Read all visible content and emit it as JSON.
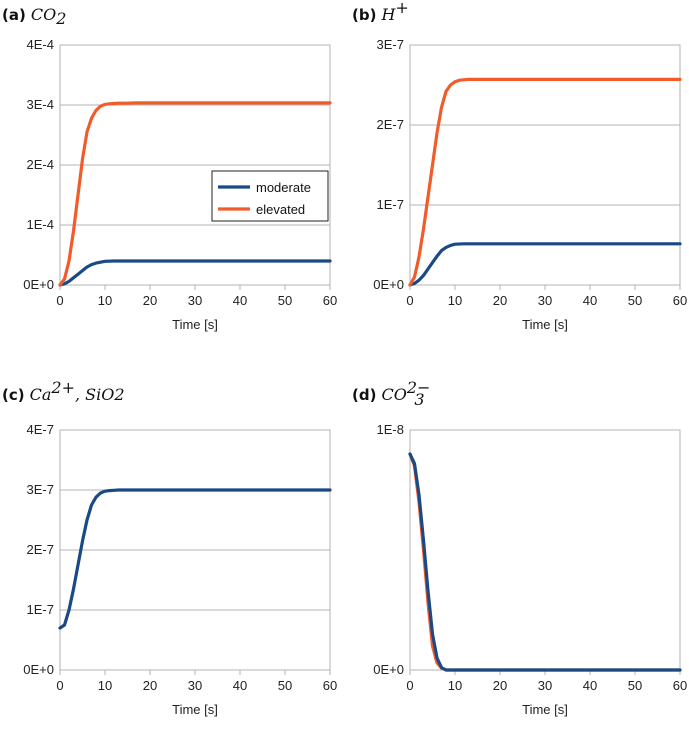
{
  "colors": {
    "moderate": "#1a4a86",
    "elevated": "#f25c2a"
  },
  "chart_data": [
    {
      "id": "a",
      "type": "line",
      "letter": "(a)",
      "symbol": {
        "base": "CO",
        "sub": "2",
        "sup": ""
      },
      "xlabel": "Time [s]",
      "xlim": [
        0,
        60
      ],
      "xticks": [
        0,
        10,
        20,
        30,
        40,
        50,
        60
      ],
      "ylim": [
        0,
        0.0004
      ],
      "yticks": [
        0,
        0.0001,
        0.0002,
        0.0003,
        0.0004
      ],
      "ytick_labels": [
        "0E+0",
        "1E-4",
        "2E-4",
        "3E-4",
        "4E-4"
      ],
      "legend": {
        "placement": "center-right",
        "entries": [
          "moderate",
          "elevated"
        ]
      },
      "series": [
        {
          "name": "moderate",
          "color_key": "moderate",
          "x": [
            0,
            1,
            2,
            3,
            4,
            5,
            6,
            7,
            8,
            9,
            10,
            12,
            14,
            16,
            20,
            30,
            40,
            50,
            60
          ],
          "y": [
            0,
            2e-06,
            6e-06,
            1.2e-05,
            1.8e-05,
            2.4e-05,
            3e-05,
            3.4e-05,
            3.65e-05,
            3.8e-05,
            3.95e-05,
            4e-05,
            4e-05,
            4e-05,
            4e-05,
            4e-05,
            4e-05,
            4e-05,
            4e-05
          ]
        },
        {
          "name": "elevated",
          "color_key": "elevated",
          "x": [
            0,
            1,
            2,
            3,
            4,
            5,
            6,
            7,
            8,
            9,
            10,
            11,
            12,
            13,
            14,
            15,
            17,
            20,
            30,
            40,
            50,
            60
          ],
          "y": [
            0,
            1e-05,
            4e-05,
            9e-05,
            0.00015,
            0.00021,
            0.000255,
            0.000278,
            0.000291,
            0.000298,
            0.000301,
            0.000302,
            0.0003025,
            0.000303,
            0.000303,
            0.000303,
            0.0003035,
            0.0003035,
            0.0003035,
            0.0003035,
            0.0003035,
            0.0003035
          ]
        }
      ]
    },
    {
      "id": "b",
      "type": "line",
      "letter": "(b)",
      "symbol": {
        "base": "H",
        "sub": "",
        "sup": "+"
      },
      "xlabel": "Time [s]",
      "xlim": [
        0,
        60
      ],
      "xticks": [
        0,
        10,
        20,
        30,
        40,
        50,
        60
      ],
      "ylim": [
        0,
        3e-07
      ],
      "yticks": [
        0,
        1e-07,
        2e-07,
        3e-07
      ],
      "ytick_labels": [
        "0E+0",
        "1E-7",
        "2E-7",
        "3E-7"
      ],
      "series": [
        {
          "name": "moderate",
          "color_key": "moderate",
          "x": [
            0,
            1,
            2,
            3,
            4,
            5,
            6,
            7,
            8,
            9,
            10,
            12,
            14,
            16,
            20,
            30,
            40,
            50,
            60
          ],
          "y": [
            0,
            2e-09,
            6e-09,
            1.2e-08,
            2e-08,
            2.8e-08,
            3.6e-08,
            4.3e-08,
            4.7e-08,
            4.95e-08,
            5.1e-08,
            5.15e-08,
            5.15e-08,
            5.15e-08,
            5.15e-08,
            5.15e-08,
            5.15e-08,
            5.15e-08,
            5.15e-08
          ]
        },
        {
          "name": "elevated",
          "color_key": "elevated",
          "x": [
            0,
            1,
            2,
            3,
            4,
            5,
            6,
            7,
            8,
            9,
            10,
            11,
            12,
            13,
            14,
            16,
            18,
            20,
            30,
            40,
            50,
            60
          ],
          "y": [
            0,
            1e-08,
            3.5e-08,
            7e-08,
            1.1e-07,
            1.5e-07,
            1.9e-07,
            2.22e-07,
            2.42e-07,
            2.5e-07,
            2.54e-07,
            2.56e-07,
            2.565e-07,
            2.57e-07,
            2.57e-07,
            2.57e-07,
            2.57e-07,
            2.57e-07,
            2.57e-07,
            2.57e-07,
            2.57e-07,
            2.57e-07
          ]
        }
      ]
    },
    {
      "id": "c",
      "type": "line",
      "letter": "(c)",
      "symbol": {
        "base": "Ca",
        "sub": "",
        "sup": "2+",
        "extra": ",  SiO2"
      },
      "xlabel": "Time [s]",
      "xlim": [
        0,
        60
      ],
      "xticks": [
        0,
        10,
        20,
        30,
        40,
        50,
        60
      ],
      "ylim": [
        0,
        4e-07
      ],
      "yticks": [
        0,
        1e-07,
        2e-07,
        3e-07,
        4e-07
      ],
      "ytick_labels": [
        "0E+0",
        "1E-7",
        "2E-7",
        "3E-7",
        "4E-7"
      ],
      "series": [
        {
          "name": "moderate",
          "color_key": "moderate",
          "x": [
            0,
            1,
            2,
            3,
            4,
            5,
            6,
            7,
            8,
            9,
            10,
            11,
            12,
            13,
            14,
            16,
            18,
            20,
            30,
            40,
            50,
            60
          ],
          "y": [
            7e-08,
            7.5e-08,
            1e-07,
            1.35e-07,
            1.75e-07,
            2.15e-07,
            2.5e-07,
            2.75e-07,
            2.88e-07,
            2.95e-07,
            2.98e-07,
            2.99e-07,
            2.995e-07,
            3e-07,
            3e-07,
            3e-07,
            3e-07,
            3e-07,
            3e-07,
            3e-07,
            3e-07,
            3e-07
          ]
        }
      ]
    },
    {
      "id": "d",
      "type": "line",
      "letter": "(d)",
      "symbol": {
        "base": "CO",
        "sub": "3",
        "sup": "2−"
      },
      "xlabel": "Time [s]",
      "xlim": [
        0,
        60
      ],
      "xticks": [
        0,
        10,
        20,
        30,
        40,
        50,
        60
      ],
      "ylim": [
        0,
        1e-08
      ],
      "yticks": [
        0,
        1e-08
      ],
      "ytick_labels": [
        "0E+0",
        "1E-8"
      ],
      "series": [
        {
          "name": "elevated",
          "color_key": "elevated",
          "x": [
            0,
            1,
            2,
            3,
            4,
            5,
            6,
            7,
            8,
            10,
            15,
            20,
            30,
            40,
            50,
            60
          ],
          "y": [
            9e-09,
            8.5e-09,
            7e-09,
            5e-09,
            2.8e-09,
            1e-09,
            3e-10,
            8e-11,
            0,
            0,
            0,
            0,
            0,
            0,
            0,
            0
          ]
        },
        {
          "name": "moderate",
          "color_key": "moderate",
          "x": [
            0,
            1,
            2,
            3,
            4,
            5,
            6,
            7,
            8,
            10,
            15,
            20,
            30,
            40,
            50,
            60
          ],
          "y": [
            9e-09,
            8.6e-09,
            7.3e-09,
            5.4e-09,
            3.3e-09,
            1.5e-09,
            5e-10,
            1e-10,
            0,
            0,
            0,
            0,
            0,
            0,
            0,
            0
          ]
        }
      ]
    }
  ]
}
